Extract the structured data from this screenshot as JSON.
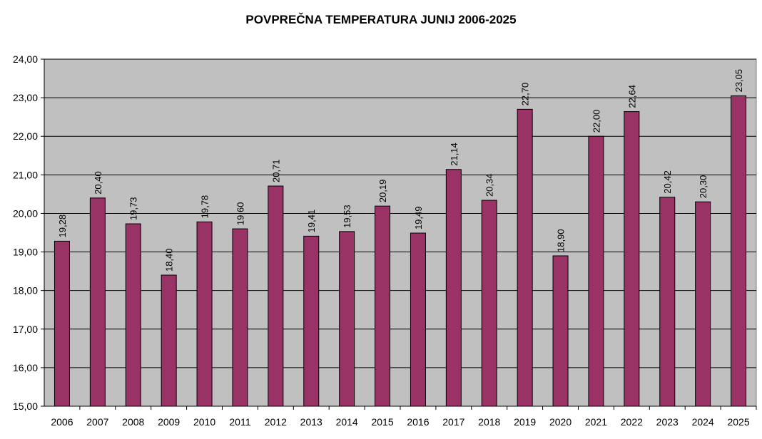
{
  "chart_data": {
    "type": "bar",
    "title": "POVPREČNA TEMPERATURA JUNIJ 2006-2025",
    "xlabel": "",
    "ylabel": "",
    "categories": [
      "2006",
      "2007",
      "2008",
      "2009",
      "2010",
      "2011",
      "2012",
      "2013",
      "2014",
      "2015",
      "2016",
      "2017",
      "2018",
      "2019",
      "2020",
      "2021",
      "2022",
      "2023",
      "2024",
      "2025"
    ],
    "values": [
      19.28,
      20.4,
      19.73,
      18.4,
      19.78,
      19.6,
      20.71,
      19.41,
      19.53,
      20.19,
      19.49,
      21.14,
      20.34,
      22.7,
      18.9,
      22.0,
      22.64,
      20.42,
      20.3,
      23.05
    ],
    "value_labels": [
      "19,28",
      "20,40",
      "19,73",
      "18,40",
      "19,78",
      "19,60",
      "20,71",
      "19,41",
      "19,53",
      "20,19",
      "19,49",
      "21,14",
      "20,34",
      "22,70",
      "18,90",
      "22,00",
      "22,64",
      "20,42",
      "20,30",
      "23,05"
    ],
    "ylim": [
      15,
      24
    ],
    "y_ticks": [
      15,
      16,
      17,
      18,
      19,
      20,
      21,
      22,
      23,
      24
    ],
    "y_tick_labels": [
      "15,00",
      "16,00",
      "17,00",
      "18,00",
      "19,00",
      "20,00",
      "21,00",
      "22,00",
      "23,00",
      "24,00"
    ],
    "grid": true,
    "legend": "none",
    "colors": {
      "bar": "#993366",
      "plot_background": "#c0c0c0",
      "gridline": "#000000"
    }
  }
}
